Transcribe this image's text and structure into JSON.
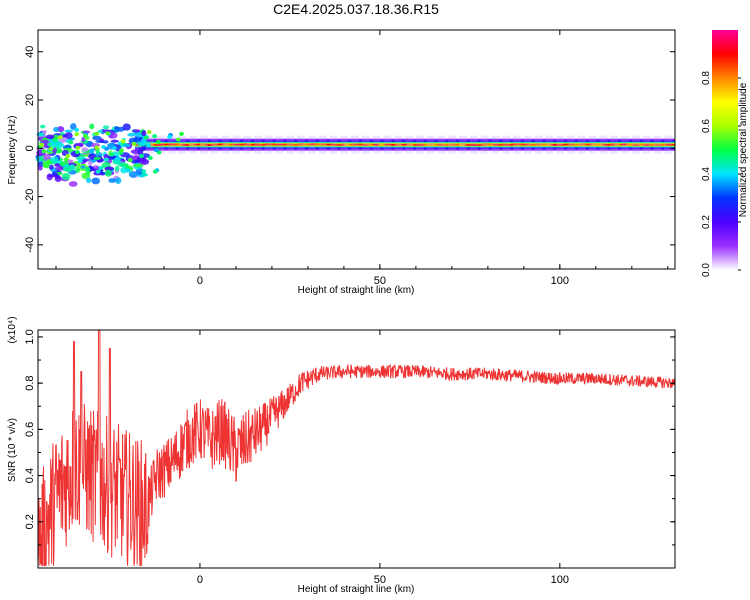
{
  "title": "C2E4.2025.037.18.36.R15",
  "chart_data": [
    {
      "type": "heatmap",
      "xlabel": "Height of straight line (km)",
      "ylabel": "Frequency (Hz)",
      "xlim": [
        -45,
        132
      ],
      "ylim": [
        -50,
        49
      ],
      "x_ticks": [
        0,
        50,
        100
      ],
      "y_ticks": [
        -40,
        -20,
        0,
        20,
        40
      ],
      "colorbar": {
        "label": "Normalized spectral amplitude",
        "range": [
          0.0,
          1.0
        ],
        "ticks": [
          "0.0",
          "0.2",
          "0.4",
          "0.6",
          "0.8"
        ],
        "colormap": [
          "#ffffff",
          "#9b30ff",
          "#4b00ff",
          "#0033ff",
          "#00e5ff",
          "#00ff44",
          "#aaff00",
          "#ffff00",
          "#ff8800",
          "#ff0000",
          "#ff0099"
        ]
      },
      "ridge": {
        "frequency_hz": 1.5,
        "stable_from_km": -18,
        "amplitude_stable": 0.85,
        "scattered_from_km": -45,
        "scattered_to_km": -15,
        "scattered_frequency_range_hz": [
          -15,
          10
        ]
      }
    },
    {
      "type": "line",
      "xlabel": "Height of straight line (km)",
      "ylabel": "SNR (10 * v/v)",
      "y_multiplier": "(x10⁴)",
      "xlim": [
        -45,
        132
      ],
      "ylim": [
        0,
        1.03
      ],
      "x_ticks": [
        0,
        50,
        100
      ],
      "y_ticks": [
        "0.2",
        "0.4",
        "0.6",
        "0.8",
        "1.0"
      ],
      "color": "#ee3333",
      "series": [
        {
          "values_by_km": [
            [
              -45,
              0.08
            ],
            [
              -40,
              0.3
            ],
            [
              -35,
              0.45
            ],
            [
              -30,
              0.4
            ],
            [
              -25,
              0.35
            ],
            [
              -20,
              0.3
            ],
            [
              -15,
              0.25
            ],
            [
              -12,
              0.4
            ],
            [
              -8,
              0.45
            ],
            [
              -4,
              0.55
            ],
            [
              0,
              0.6
            ],
            [
              3,
              0.55
            ],
            [
              6,
              0.6
            ],
            [
              10,
              0.5
            ],
            [
              13,
              0.55
            ],
            [
              17,
              0.6
            ],
            [
              20,
              0.65
            ],
            [
              24,
              0.72
            ],
            [
              28,
              0.8
            ],
            [
              33,
              0.84
            ],
            [
              40,
              0.85
            ],
            [
              50,
              0.85
            ],
            [
              60,
              0.85
            ],
            [
              70,
              0.84
            ],
            [
              80,
              0.84
            ],
            [
              90,
              0.83
            ],
            [
              100,
              0.82
            ],
            [
              110,
              0.82
            ],
            [
              120,
              0.81
            ],
            [
              132,
              0.8
            ]
          ],
          "noise_amplitude_by_km": [
            [
              -45,
              0.3
            ],
            [
              -15,
              0.3
            ],
            [
              -14,
              0.12
            ],
            [
              10,
              0.15
            ],
            [
              25,
              0.06
            ],
            [
              35,
              0.03
            ],
            [
              132,
              0.025
            ]
          ],
          "peaks": [
            [
              -35,
              0.98
            ],
            [
              -28,
              1.03
            ],
            [
              -25,
              0.95
            ],
            [
              -33,
              0.85
            ]
          ]
        }
      ]
    }
  ]
}
